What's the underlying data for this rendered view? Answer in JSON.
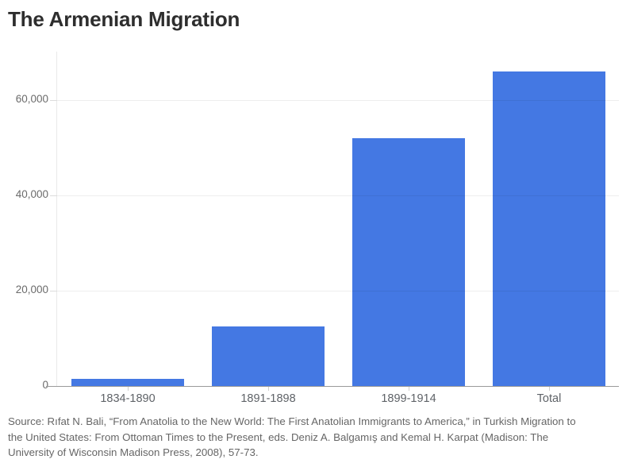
{
  "header": {
    "title": "The Armenian Migration"
  },
  "chart_data": {
    "type": "bar",
    "title": "The Armenian Migration",
    "categories": [
      "1834-1890",
      "1891-1898",
      "1899-1914",
      "Total"
    ],
    "values": [
      1500,
      12500,
      51950,
      65950
    ],
    "xlabel": "",
    "ylabel": "",
    "ylim": [
      0,
      70000
    ],
    "yticks": [
      0,
      20000,
      40000,
      60000
    ],
    "ytick_labels": [
      "0",
      "20,000",
      "40,000",
      "60,000"
    ],
    "grid": true,
    "legend": false,
    "bar_color": "#4478e3"
  },
  "footer": {
    "source": "Source: Rıfat N. Bali, “From Anatolia to the New World: The First Anatolian Immigrants to America,” in Turkish Migration to the United States: From Ottoman Times to the Present, eds. Deniz A. Balgamış and Kemal H. Karpat (Madison: The University of Wisconsin Madison Press, 2008), 57-73."
  },
  "colors": {
    "bar": "#4478e3",
    "title_text": "#2e2e2e",
    "axis_label_text": "#5f6368",
    "source_text": "#666666",
    "baseline": "#9b9b9b",
    "gridline": "#ececec"
  }
}
